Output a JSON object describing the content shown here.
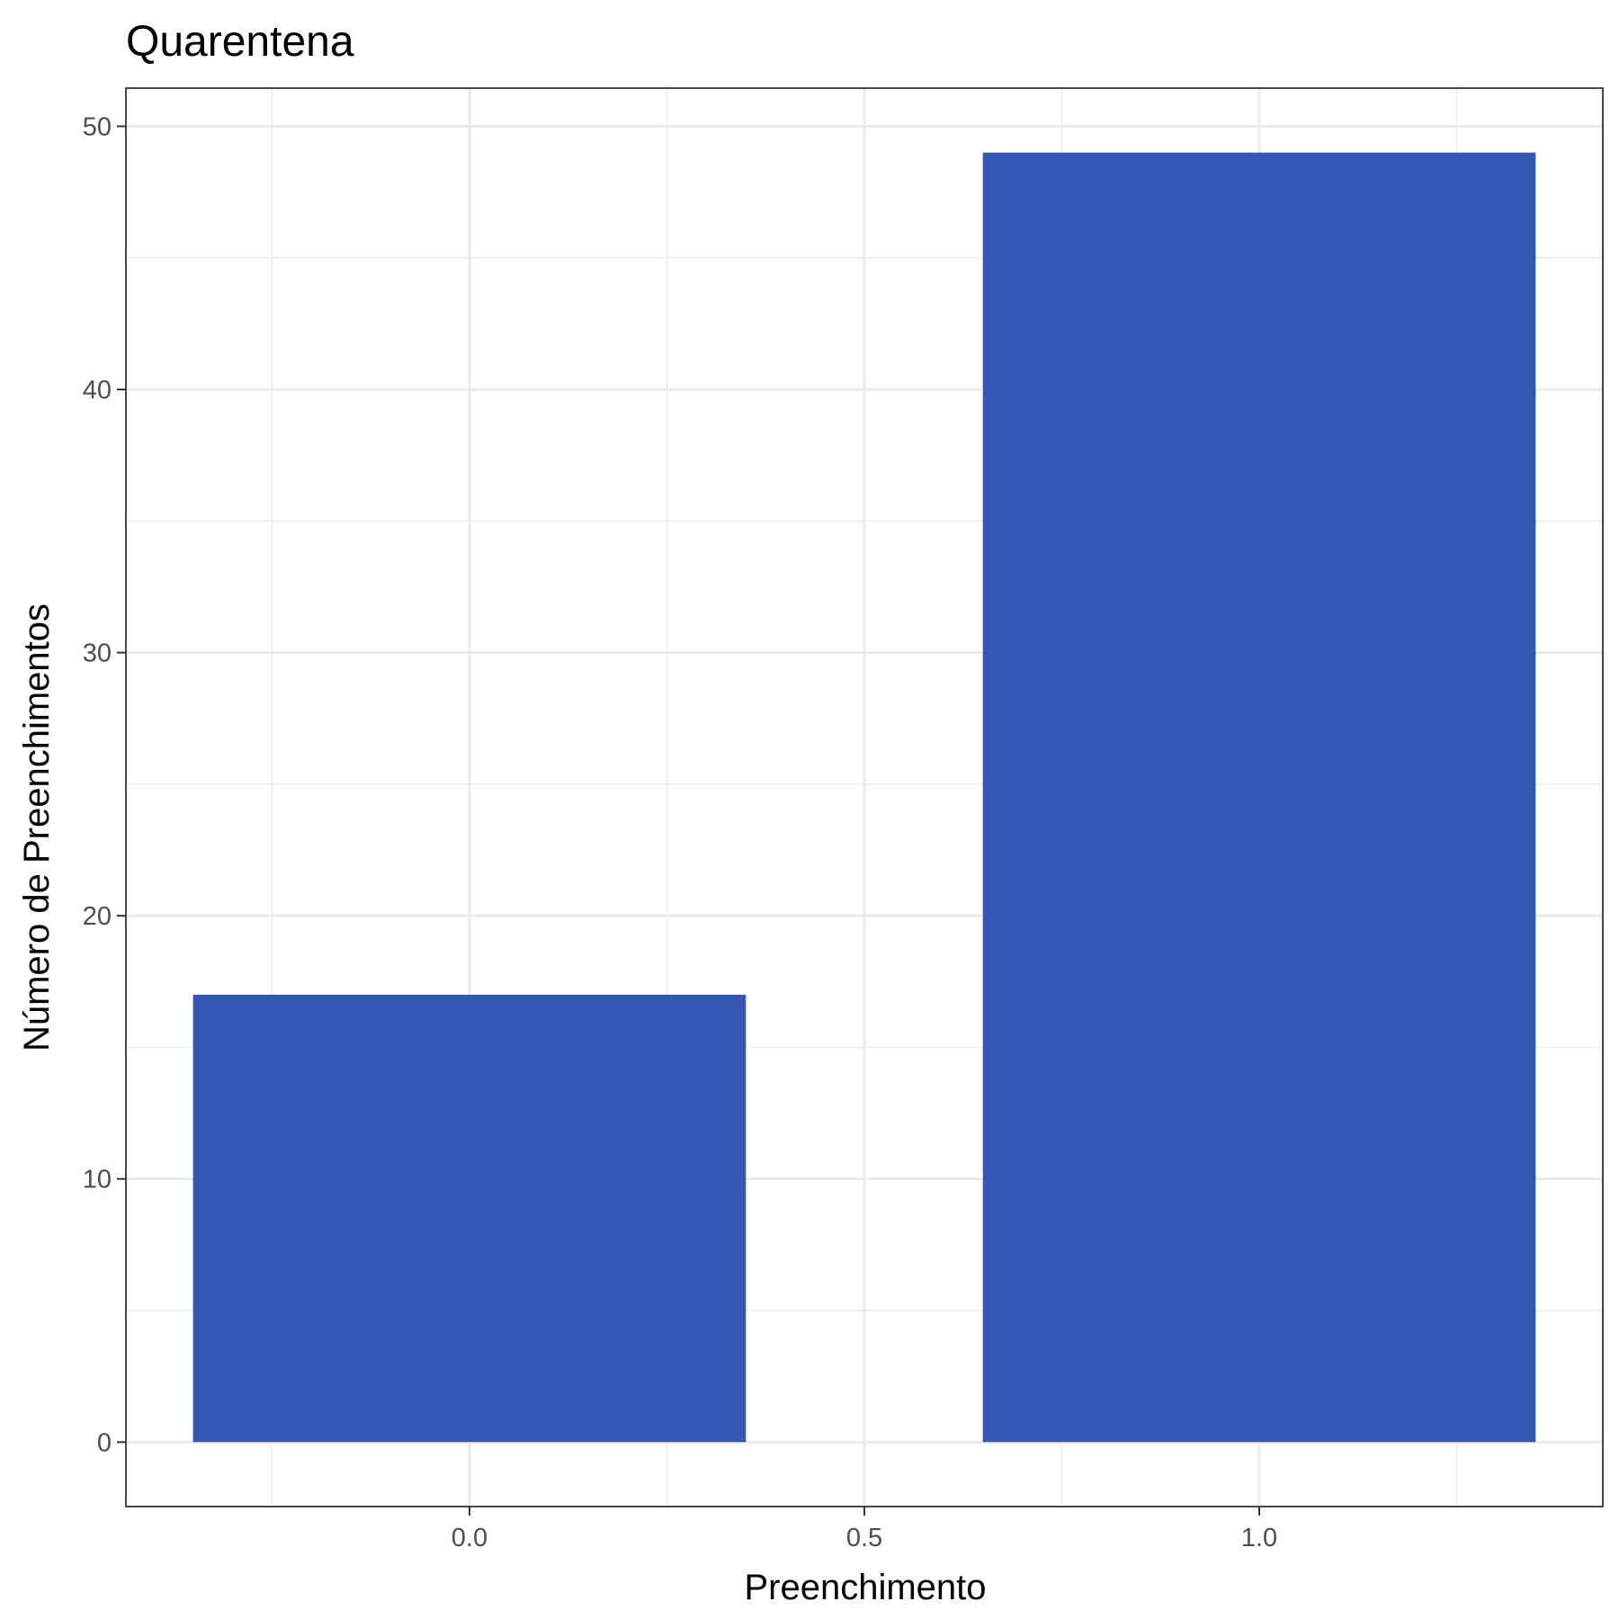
{
  "chart_data": {
    "type": "bar",
    "title": "Quarentena",
    "xlabel": "Preenchimento",
    "ylabel": "Número de Preenchimentos",
    "x": [
      0,
      1
    ],
    "values": [
      17,
      49
    ],
    "bar_width": 0.7,
    "xlim": [
      -0.435,
      1.435
    ],
    "ylim": [
      -2.45,
      51.45
    ],
    "x_ticks": [
      0.0,
      0.5,
      1.0
    ],
    "x_tick_labels": [
      "0.0",
      "0.5",
      "1.0"
    ],
    "x_minor_ticks": [
      -0.25,
      0.25,
      0.75,
      1.25
    ],
    "y_ticks": [
      0,
      10,
      20,
      30,
      40,
      50
    ],
    "y_tick_labels": [
      "0",
      "10",
      "20",
      "30",
      "40",
      "50"
    ],
    "y_minor_ticks": [
      5,
      15,
      25,
      35,
      45
    ],
    "grid": true,
    "legend": "none",
    "colors": {
      "bar": "#3457b3",
      "grid_major": "#ebebeb",
      "grid_minor": "#ebebeb",
      "panel_border": "#333333",
      "tick_text": "#4d4d4d",
      "tick_mark": "#333333"
    }
  }
}
